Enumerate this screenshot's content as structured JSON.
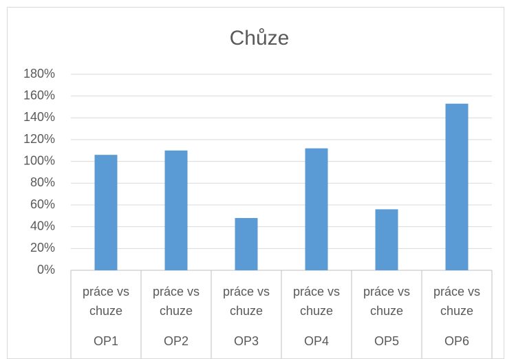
{
  "chart_data": {
    "type": "bar",
    "title": "Chůze",
    "categories": [
      "práce vs chuze",
      "práce vs chuze",
      "práce vs chuze",
      "práce vs chuze",
      "práce vs chuze",
      "práce vs chuze"
    ],
    "groups": [
      "OP1",
      "OP2",
      "OP3",
      "OP4",
      "OP5",
      "OP6"
    ],
    "values": [
      106,
      110,
      48,
      112,
      56,
      153
    ],
    "color": "#5b9bd5",
    "ylim": [
      0,
      180
    ],
    "yticks": [
      {
        "value": 0,
        "label": "0%"
      },
      {
        "value": 20,
        "label": "20%"
      },
      {
        "value": 40,
        "label": "40%"
      },
      {
        "value": 60,
        "label": "60%"
      },
      {
        "value": 80,
        "label": "80%"
      },
      {
        "value": 100,
        "label": "100%"
      },
      {
        "value": 120,
        "label": "120%"
      },
      {
        "value": 140,
        "label": "140%"
      },
      {
        "value": 160,
        "label": "160%"
      },
      {
        "value": 180,
        "label": "180%"
      }
    ],
    "grid": true
  }
}
